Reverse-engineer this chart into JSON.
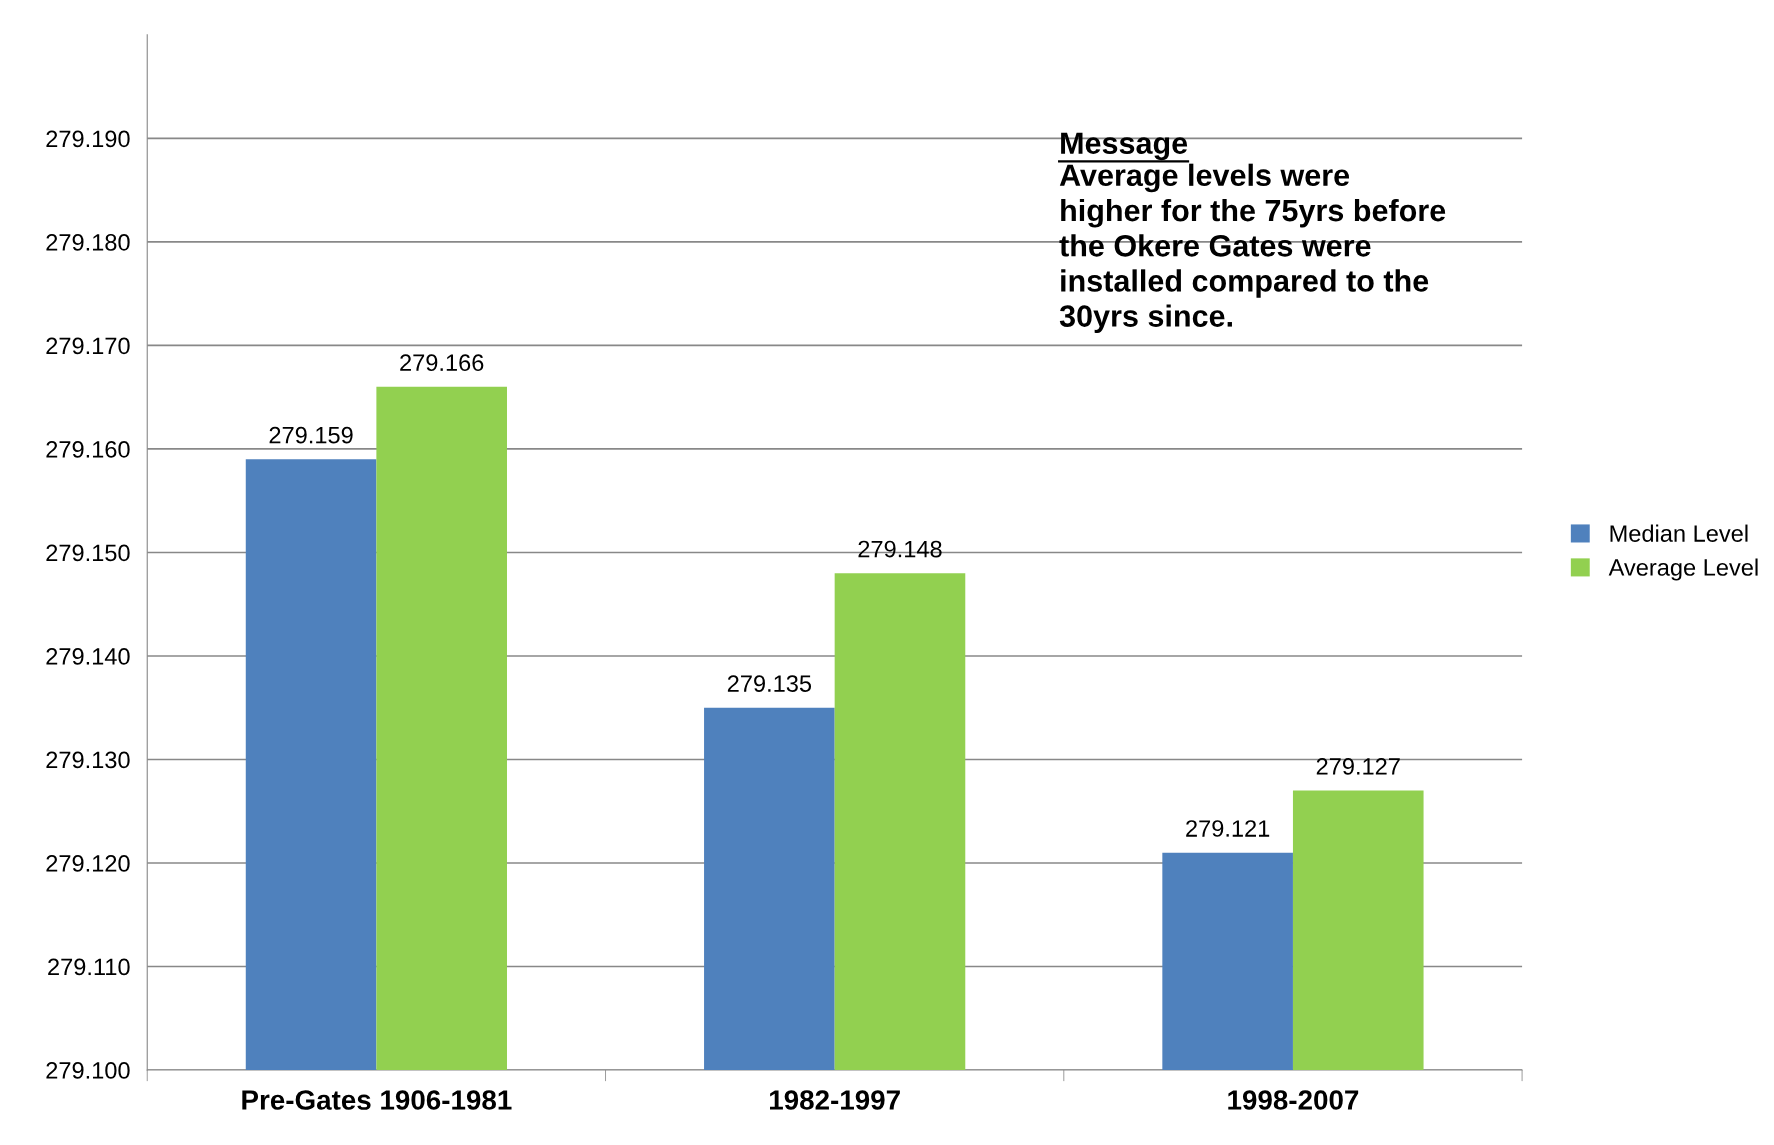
{
  "chart_data": {
    "type": "bar",
    "categories": [
      "Pre-Gates 1906-1981",
      "1982-1997",
      "1998-2007"
    ],
    "series": [
      {
        "name": "Median Level",
        "color": "#4f81bd",
        "values": [
          279.159,
          279.135,
          279.121
        ]
      },
      {
        "name": "Average Level",
        "color": "#92d050",
        "values": [
          279.166,
          279.148,
          279.127
        ]
      }
    ],
    "ylim": [
      279.1,
      279.2
    ],
    "yticks": [
      {
        "value": 279.1,
        "label": "279.100"
      },
      {
        "value": 279.11,
        "label": "279.110"
      },
      {
        "value": 279.12,
        "label": "279.120"
      },
      {
        "value": 279.13,
        "label": "279.130"
      },
      {
        "value": 279.14,
        "label": "279.140"
      },
      {
        "value": 279.15,
        "label": "279.150"
      },
      {
        "value": 279.16,
        "label": "279.160"
      },
      {
        "value": 279.17,
        "label": "279.170"
      },
      {
        "value": 279.18,
        "label": "279.180"
      },
      {
        "value": 279.19,
        "label": "279.190"
      }
    ],
    "data_labels": true,
    "grid": "y",
    "legend": "right",
    "annotations": [
      "Message",
      "Average levels were\nhigher for the 75yrs before\nthe Okere Gates were\ninstalled compared to the\n30yrs since."
    ]
  }
}
